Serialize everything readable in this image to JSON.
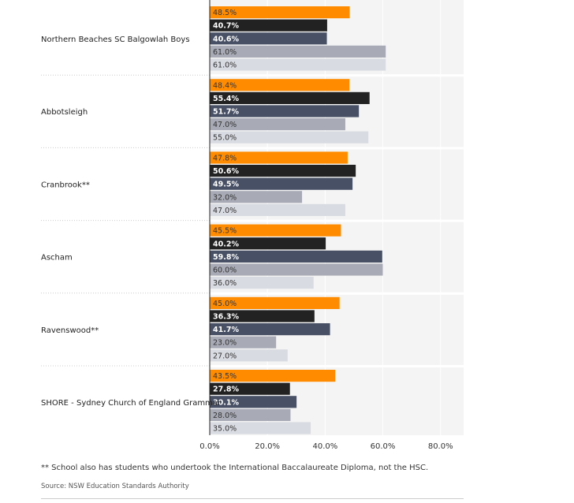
{
  "chart_data": {
    "type": "bar",
    "orientation": "horizontal",
    "categories": [
      "Northern Beaches SC Balgowlah Boys",
      "Abbotsleigh",
      "Cranbrook**",
      "Ascham",
      "Ravenswood**",
      "SHORE - Sydney Church of England Grammar"
    ],
    "series": [
      {
        "color": "#ff8c00",
        "text_color": "#333333",
        "values": [
          48.5,
          48.4,
          47.8,
          45.5,
          45.0,
          43.5
        ],
        "labels": [
          "48.5%",
          "48.4%",
          "47.8%",
          "45.5%",
          "45.0%",
          "43.5%"
        ]
      },
      {
        "color": "#222222",
        "text_color": "#ffffff",
        "values": [
          40.7,
          55.4,
          50.6,
          40.2,
          36.3,
          27.8
        ],
        "labels": [
          "40.7%",
          "55.4%",
          "50.6%",
          "40.2%",
          "36.3%",
          "27.8%"
        ]
      },
      {
        "color": "#475065",
        "text_color": "#ffffff",
        "values": [
          40.6,
          51.7,
          49.5,
          59.8,
          41.7,
          30.1
        ],
        "labels": [
          "40.6%",
          "51.7%",
          "49.5%",
          "59.8%",
          "41.7%",
          "30.1%"
        ]
      },
      {
        "color": "#a8abb6",
        "text_color": "#333333",
        "values": [
          61.0,
          47.0,
          32.0,
          60.0,
          23.0,
          28.0
        ],
        "labels": [
          "61.0%",
          "47.0%",
          "32.0%",
          "60.0%",
          "23.0%",
          "28.0%"
        ]
      },
      {
        "color": "#d9dbe2",
        "text_color": "#333333",
        "values": [
          61.0,
          55.0,
          47.0,
          36.0,
          27.0,
          35.0
        ],
        "labels": [
          "61.0%",
          "55.0%",
          "47.0%",
          "36.0%",
          "27.0%",
          "35.0%"
        ]
      }
    ],
    "xlim": [
      0,
      88
    ],
    "xticks": [
      0,
      20,
      40,
      60,
      80
    ],
    "xtick_labels": [
      "0.0%",
      "20.0%",
      "40.0%",
      "60.0%",
      "80.0%"
    ],
    "grid": true
  },
  "footnote": "** School also has students who undertook the International Baccalaureate Diploma, not the HSC.",
  "source": "Source: NSW Education Standards Authority"
}
